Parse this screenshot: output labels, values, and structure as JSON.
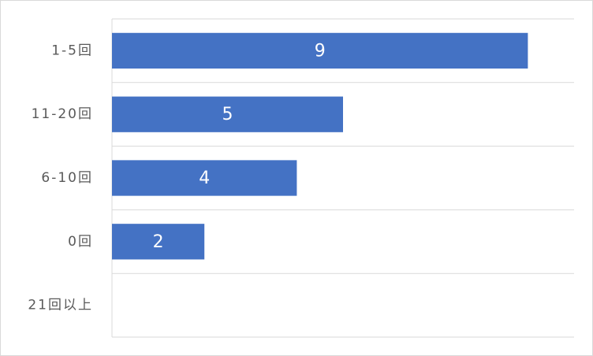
{
  "chart_data": {
    "type": "barh",
    "categories": [
      "1-5回",
      "11-20回",
      "6-10回",
      "0回",
      "21回以上"
    ],
    "values": [
      9,
      5,
      4,
      2,
      0
    ],
    "color": "#4472c4",
    "xlim": [
      0,
      10
    ]
  }
}
